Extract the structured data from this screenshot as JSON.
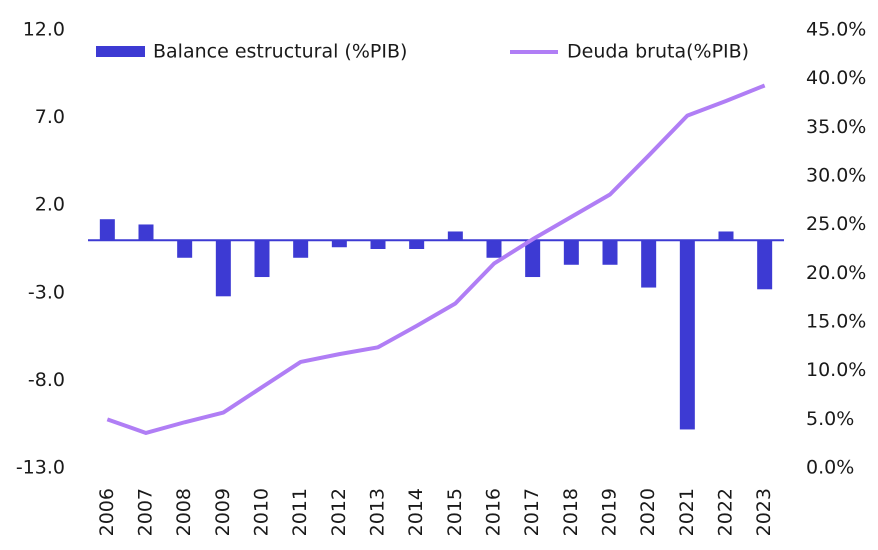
{
  "chart_data": {
    "type": "bar",
    "categories": [
      "2006",
      "2007",
      "2008",
      "2009",
      "2010",
      "2011",
      "2012",
      "2013",
      "2014",
      "2015",
      "2016",
      "2017",
      "2018",
      "2019",
      "2020",
      "2021",
      "2022",
      "2023"
    ],
    "series": [
      {
        "name": "Balance estructural (%PIB)",
        "type": "bar",
        "color": "#3d3ad3",
        "values": [
          1.2,
          0.9,
          -1.0,
          -3.2,
          -2.1,
          -1.0,
          -0.4,
          -0.5,
          -0.5,
          0.5,
          -1.0,
          -2.1,
          -1.4,
          -1.4,
          -2.7,
          -10.8,
          0.5,
          -2.8
        ]
      },
      {
        "name": "Deuda bruta(%PIB)",
        "type": "line",
        "axis": "y2",
        "color": "#b07ef5",
        "values": [
          5.0,
          3.6,
          4.7,
          5.7,
          8.3,
          10.9,
          11.7,
          12.4,
          14.6,
          16.9,
          21.0,
          23.5,
          25.8,
          28.1,
          32.1,
          36.2,
          37.7,
          39.3
        ]
      }
    ],
    "ylim": [
      -13,
      12
    ],
    "yticks": [
      {
        "value": 12,
        "label": "12.0"
      },
      {
        "value": 7,
        "label": "7.0"
      },
      {
        "value": 2,
        "label": "2.0"
      },
      {
        "value": -3,
        "label": "-3.0"
      },
      {
        "value": -8,
        "label": "-8.0"
      },
      {
        "value": -13,
        "label": "-13.0"
      }
    ],
    "y2lim": [
      0,
      45
    ],
    "y2ticks": [
      {
        "value": 45,
        "label": "45.0%"
      },
      {
        "value": 40,
        "label": "40.0%"
      },
      {
        "value": 35,
        "label": "35.0%"
      },
      {
        "value": 30,
        "label": "30.0%"
      },
      {
        "value": 25,
        "label": "25.0%"
      },
      {
        "value": 20,
        "label": "20.0%"
      },
      {
        "value": 15,
        "label": "15.0%"
      },
      {
        "value": 10,
        "label": "10.0%"
      },
      {
        "value": 5,
        "label": "5.0%"
      },
      {
        "value": 0,
        "label": "0.0%"
      }
    ],
    "legend": "top"
  }
}
